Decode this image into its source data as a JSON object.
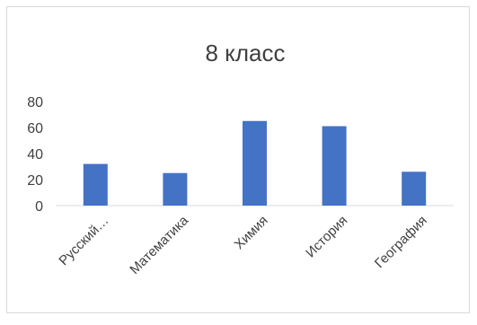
{
  "chart_data": {
    "type": "bar",
    "title": "8 класс",
    "categories": [
      "Русский…",
      "Математика",
      "Химия",
      "История",
      "География"
    ],
    "series": [
      {
        "values": [
          32,
          25,
          65,
          61,
          26
        ]
      }
    ],
    "xlabel": "",
    "ylabel": "",
    "ylim": [
      0,
      80
    ],
    "yticks": [
      0,
      20,
      40,
      60,
      80
    ],
    "grid": false,
    "legend": "none",
    "bar_color": "#4472c4"
  }
}
